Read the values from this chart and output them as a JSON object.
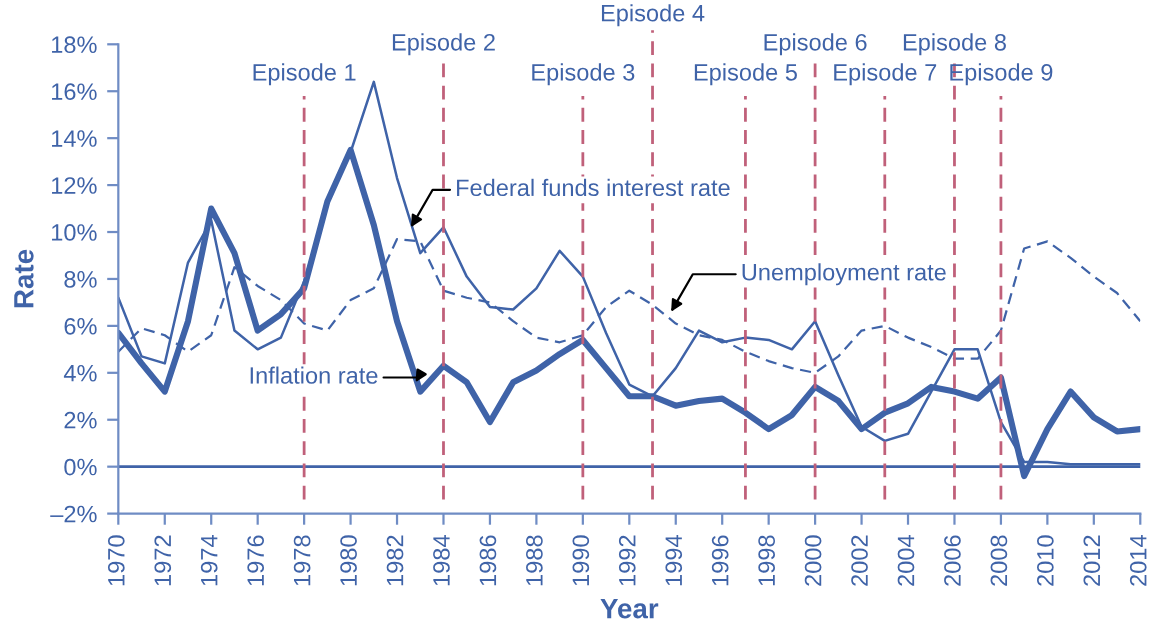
{
  "chart_data": {
    "type": "line",
    "xlabel": "Year",
    "ylabel": "Rate",
    "x": [
      1970,
      1971,
      1972,
      1973,
      1974,
      1975,
      1976,
      1977,
      1978,
      1979,
      1980,
      1981,
      1982,
      1983,
      1984,
      1985,
      1986,
      1987,
      1988,
      1989,
      1990,
      1991,
      1992,
      1993,
      1994,
      1995,
      1996,
      1997,
      1998,
      1999,
      2000,
      2001,
      2002,
      2003,
      2004,
      2005,
      2006,
      2007,
      2008,
      2009,
      2010,
      2011,
      2012,
      2013,
      2014
    ],
    "series": [
      {
        "color": "#3f63a8",
        "line_style": "solid",
        "values": [
          7.2,
          4.7,
          4.4,
          8.7,
          10.5,
          5.8,
          5.0,
          5.5,
          7.9,
          11.2,
          13.4,
          16.4,
          12.3,
          9.1,
          10.2,
          8.1,
          6.8,
          6.7,
          7.6,
          9.2,
          8.1,
          5.7,
          3.5,
          3.0,
          4.2,
          5.8,
          5.3,
          5.5,
          5.4,
          5.0,
          6.2,
          3.9,
          1.7,
          1.1,
          1.4,
          3.2,
          5.0,
          5.0,
          1.9,
          0.2,
          0.2,
          0.1,
          0.1,
          0.1,
          0.1
        ]
      },
      {
        "color": "#3f63a8",
        "line_style": "dashed",
        "values": [
          4.9,
          5.9,
          5.6,
          4.9,
          5.6,
          8.5,
          7.7,
          7.1,
          6.1,
          5.8,
          7.1,
          7.6,
          9.7,
          9.6,
          7.5,
          7.2,
          7.0,
          6.2,
          5.5,
          5.3,
          5.6,
          6.8,
          7.5,
          6.9,
          6.1,
          5.6,
          5.4,
          4.9,
          4.5,
          4.2,
          4.0,
          4.7,
          5.8,
          6.0,
          5.5,
          5.1,
          4.6,
          4.6,
          5.8,
          9.3,
          9.6,
          8.9,
          8.1,
          7.4,
          6.2
        ]
      },
      {
        "color": "#3f63a8",
        "line_style": "solid",
        "values": [
          5.7,
          4.4,
          3.2,
          6.2,
          11.0,
          9.1,
          5.8,
          6.5,
          7.6,
          11.3,
          13.5,
          10.3,
          6.2,
          3.2,
          4.3,
          3.6,
          1.9,
          3.6,
          4.1,
          4.8,
          5.4,
          4.2,
          3.0,
          3.0,
          2.6,
          2.8,
          2.9,
          2.3,
          1.6,
          2.2,
          3.4,
          2.8,
          1.6,
          2.3,
          2.7,
          3.4,
          3.2,
          2.9,
          3.8,
          -0.4,
          1.6,
          3.2,
          2.1,
          1.5,
          1.6
        ]
      }
    ],
    "xlim": [
      1970,
      2014
    ],
    "xticks": [
      1970,
      1972,
      1974,
      1976,
      1978,
      1980,
      1982,
      1984,
      1986,
      1988,
      1990,
      1992,
      1994,
      1996,
      1998,
      2000,
      2002,
      2004,
      2006,
      2008,
      2010,
      2012,
      2014
    ],
    "ylim": [
      -2,
      18
    ],
    "yticks": [
      {
        "value": -2,
        "label": "–2%"
      },
      {
        "value": 0,
        "label": "0%"
      },
      {
        "value": 2,
        "label": "2%"
      },
      {
        "value": 4,
        "label": "4%"
      },
      {
        "value": 6,
        "label": "6%"
      },
      {
        "value": 8,
        "label": "8%"
      },
      {
        "value": 10,
        "label": "10%"
      },
      {
        "value": 12,
        "label": "12%"
      },
      {
        "value": 14,
        "label": "14%"
      },
      {
        "value": 16,
        "label": "16%"
      },
      {
        "value": 18,
        "label": "18%"
      }
    ],
    "grid": false,
    "legend": false,
    "marker": "none",
    "ref_lines": [
      {
        "axis": "y",
        "value": 0,
        "color": "#3f63a8",
        "line_style": "solid"
      },
      {
        "axis": "x",
        "value": 1978,
        "label": "Episode 1",
        "color": "#c0607a",
        "line_style": "dashed"
      },
      {
        "axis": "x",
        "value": 1984,
        "label": "Episode 2",
        "color": "#c0607a",
        "line_style": "dashed"
      },
      {
        "axis": "x",
        "value": 1990,
        "label": "Episode 3",
        "color": "#c0607a",
        "line_style": "dashed"
      },
      {
        "axis": "x",
        "value": 1993,
        "label": "Episode 4",
        "color": "#c0607a",
        "line_style": "dashed"
      },
      {
        "axis": "x",
        "value": 1997,
        "label": "Episode 5",
        "color": "#c0607a",
        "line_style": "dashed"
      },
      {
        "axis": "x",
        "value": 2000,
        "label": "Episode 6",
        "color": "#c0607a",
        "line_style": "dashed"
      },
      {
        "axis": "x",
        "value": 2003,
        "label": "Episode 7",
        "color": "#c0607a",
        "line_style": "dashed"
      },
      {
        "axis": "x",
        "value": 2006,
        "label": "Episode 8",
        "color": "#c0607a",
        "line_style": "dashed"
      },
      {
        "axis": "x",
        "value": 2008,
        "label": "Episode 9",
        "color": "#c0607a",
        "line_style": "dashed"
      }
    ],
    "annotations": [
      {
        "text": "Federal funds interest rate",
        "x": 1982.6,
        "y": 10.2
      },
      {
        "text": "Unemployment rate",
        "x": 1993.8,
        "y": 6.6
      },
      {
        "text": "Inflation rate",
        "x": 1982.8,
        "y": 3.6
      }
    ]
  }
}
